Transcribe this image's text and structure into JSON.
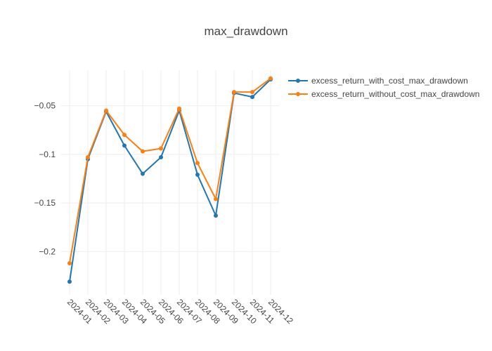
{
  "chart_data": {
    "type": "line",
    "title": "max_drawdown",
    "xlabel": "",
    "ylabel": "",
    "x": [
      "2024-01",
      "2024-02",
      "2024-03",
      "2024-04",
      "2024-05",
      "2024-06",
      "2024-07",
      "2024-08",
      "2024-09",
      "2024-10",
      "2024-11",
      "2024-12"
    ],
    "series": [
      {
        "name": "excess_return_with_cost_max_drawdown",
        "color": "#1f77b4",
        "values": [
          -0.231,
          -0.105,
          -0.056,
          -0.091,
          -0.12,
          -0.103,
          -0.055,
          -0.121,
          -0.163,
          -0.037,
          -0.041,
          -0.023
        ]
      },
      {
        "name": "excess_return_without_cost_max_drawdown",
        "color": "#ff7f0e",
        "values": [
          -0.212,
          -0.103,
          -0.055,
          -0.08,
          -0.097,
          -0.094,
          -0.053,
          -0.109,
          -0.146,
          -0.036,
          -0.036,
          -0.022
        ]
      }
    ],
    "ylim": [
      -0.2445,
      -0.0135
    ],
    "yticks": [
      -0.2,
      -0.15,
      -0.1,
      -0.05
    ],
    "ytick_labels": [
      "−0.2",
      "−0.15",
      "−0.1",
      "−0.05"
    ],
    "grid": true,
    "legend": "top-right"
  }
}
